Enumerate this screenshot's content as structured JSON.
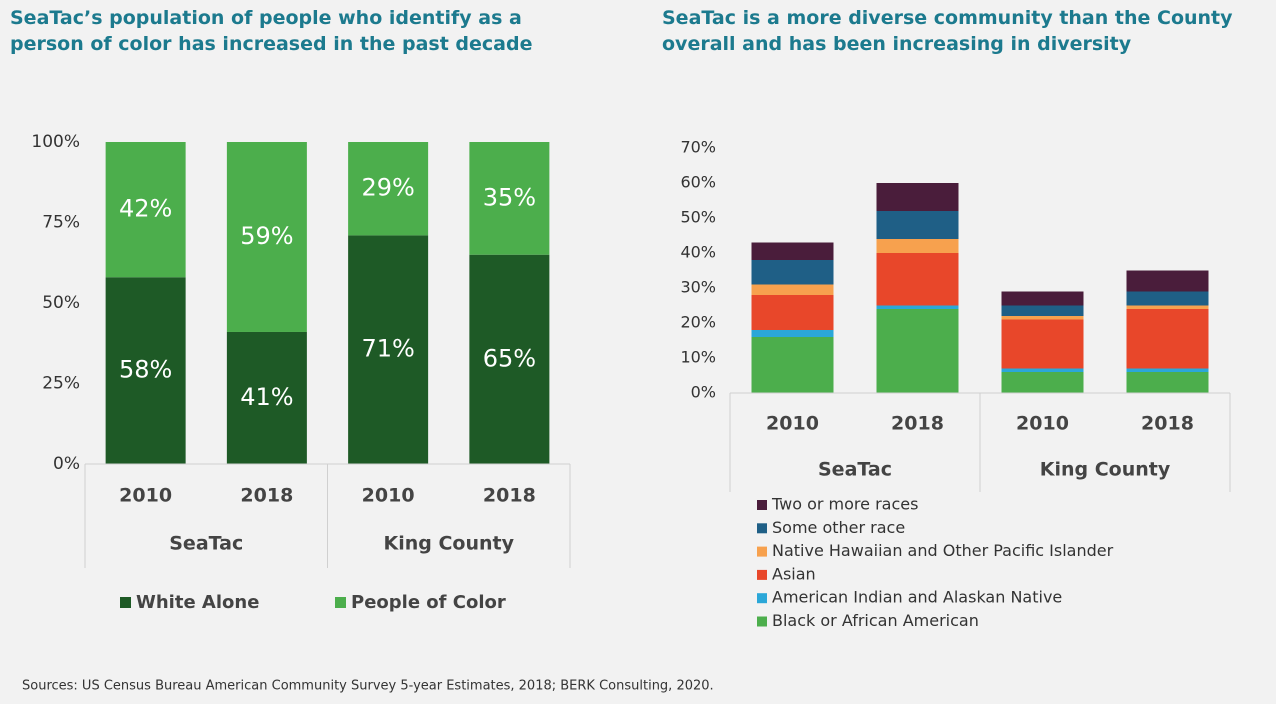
{
  "chart_data": [
    {
      "type": "stacked_bar",
      "title": "SeaTac’s population of people who identify as a person of color has increased in the past decade",
      "categories": [
        "2010",
        "2018",
        "2010",
        "2018"
      ],
      "groups": [
        "SeaTac",
        "King County"
      ],
      "series": [
        {
          "name": "White Alone",
          "color": "#1e5a26",
          "values": [
            58,
            41,
            71,
            65
          ],
          "value_labels": [
            "58%",
            "41%",
            "71%",
            "65%"
          ]
        },
        {
          "name": "People of Color",
          "color": "#4cae4c",
          "values": [
            42,
            59,
            29,
            35
          ],
          "value_labels": [
            "42%",
            "59%",
            "29%",
            "35%"
          ]
        }
      ],
      "ylim": [
        0,
        100
      ],
      "yticks": [
        {
          "value": 0,
          "label": "0%"
        },
        {
          "value": 25,
          "label": "25%"
        },
        {
          "value": 50,
          "label": "50%"
        },
        {
          "value": 75,
          "label": "75%"
        },
        {
          "value": 100,
          "label": "100%"
        }
      ],
      "legend": "bottom"
    },
    {
      "type": "stacked_bar",
      "title": "SeaTac is a more diverse community than the County overall and has been increasing in diversity",
      "categories": [
        "2010",
        "2018",
        "2010",
        "2018"
      ],
      "groups": [
        "SeaTac",
        "King County"
      ],
      "series": [
        {
          "name": "Black or African American",
          "color": "#4cae4c",
          "values": [
            16,
            24,
            6,
            6
          ]
        },
        {
          "name": "American Indian and Alaskan Native",
          "color": "#2ba7d8",
          "values": [
            2,
            1,
            1,
            1
          ]
        },
        {
          "name": "Asian",
          "color": "#e8472a",
          "values": [
            10,
            15,
            14,
            17
          ]
        },
        {
          "name": "Native Hawaiian and Other Pacific Islander",
          "color": "#f7a14e",
          "values": [
            3,
            4,
            1,
            1
          ]
        },
        {
          "name": "Some other race",
          "color": "#1f5f86",
          "values": [
            7,
            8,
            3,
            4
          ]
        },
        {
          "name": "Two or more races",
          "color": "#4a1d3b",
          "values": [
            5,
            8,
            4,
            6
          ]
        }
      ],
      "ylim": [
        0,
        70
      ],
      "yticks": [
        {
          "value": 0,
          "label": "0%"
        },
        {
          "value": 10,
          "label": "10%"
        },
        {
          "value": 20,
          "label": "20%"
        },
        {
          "value": 30,
          "label": "30%"
        },
        {
          "value": 40,
          "label": "40%"
        },
        {
          "value": 50,
          "label": "50%"
        },
        {
          "value": 60,
          "label": "60%"
        },
        {
          "value": 70,
          "label": "70%"
        }
      ],
      "legend": "bottom"
    }
  ],
  "source": "Sources: US Census Bureau American Community Survey 5-year Estimates, 2018; BERK Consulting, 2020."
}
